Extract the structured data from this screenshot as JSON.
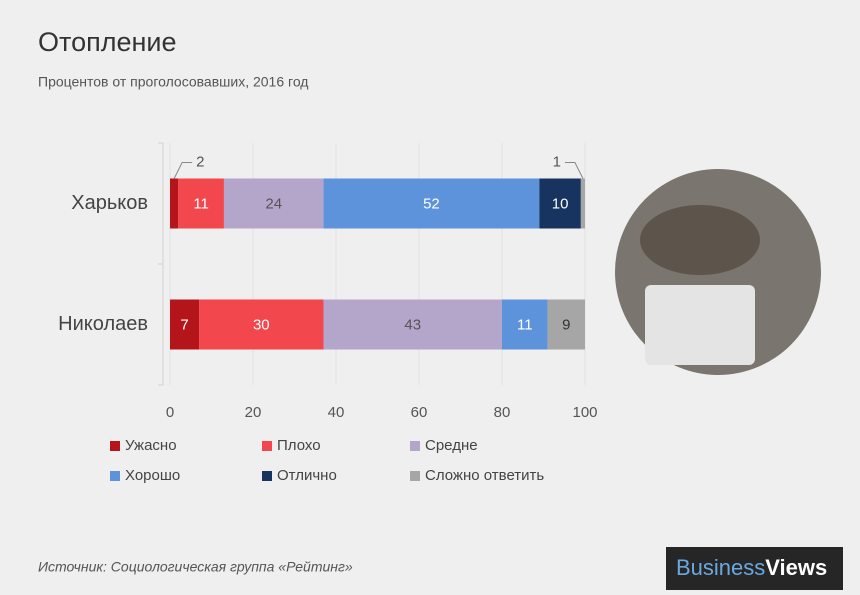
{
  "chart_data": {
    "type": "stacked-barh",
    "title": "Отопление",
    "subtitle": "Процентов от проголосовавших, 2016 год",
    "categories": [
      "Харьков",
      "Николаев"
    ],
    "series": [
      {
        "name": "Ужасно",
        "color": "#b3151a",
        "label_color": "#ffffff",
        "values": [
          2,
          7
        ]
      },
      {
        "name": "Плохо",
        "color": "#f2474d",
        "label_color": "#ffffff",
        "values": [
          11,
          30
        ]
      },
      {
        "name": "Средне",
        "color": "#b4a5cb",
        "label_color": "#555555",
        "values": [
          24,
          43
        ]
      },
      {
        "name": "Хорошо",
        "color": "#5c93db",
        "label_color": "#ffffff",
        "values": [
          52,
          11
        ]
      },
      {
        "name": "Отлично",
        "color": "#17335f",
        "label_color": "#ffffff",
        "values": [
          10,
          0
        ]
      },
      {
        "name": "Сложно ответить",
        "color": "#a6a6a6",
        "label_color": "#333333",
        "values": [
          1,
          9
        ]
      }
    ],
    "xlim": [
      0,
      100
    ],
    "xticks": [
      0,
      20,
      40,
      60,
      80,
      100
    ],
    "grid": true,
    "source": "Источник: Социологическая группа «Рейтинг»"
  },
  "logo": {
    "first": "Business",
    "second": "Views"
  }
}
